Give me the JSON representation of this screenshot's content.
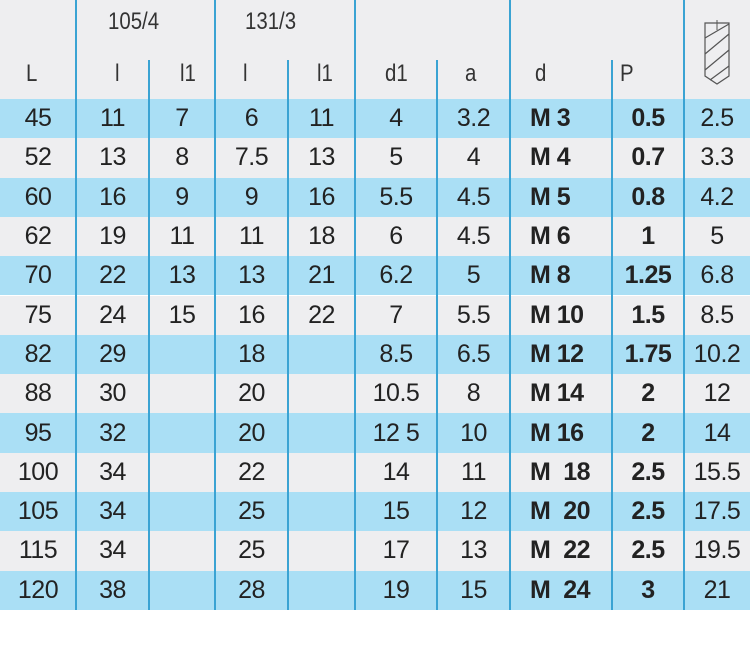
{
  "header": {
    "group_105": "105/4",
    "group_131": "131/3",
    "columns": [
      "L",
      "l",
      "l1",
      "l",
      "l1",
      "d1",
      "a",
      "d",
      "P"
    ],
    "icon": "tap-drill-icon"
  },
  "colors": {
    "row_blue": "#aadff5",
    "row_grey": "#eeeef0",
    "lines": "#3aa3d3"
  },
  "rows": [
    [
      "45",
      "11",
      "7",
      "6",
      "11",
      "4",
      "3.2",
      "M 3",
      "0.5",
      "2.5"
    ],
    [
      "52",
      "13",
      "8",
      "7.5",
      "13",
      "5",
      "4",
      "M 4",
      "0.7",
      "3.3"
    ],
    [
      "60",
      "16",
      "9",
      "9",
      "16",
      "5.5",
      "4.5",
      "M 5",
      "0.8",
      "4.2"
    ],
    [
      "62",
      "19",
      "11",
      "11",
      "18",
      "6",
      "4.5",
      "M 6",
      "1",
      "5"
    ],
    [
      "70",
      "22",
      "13",
      "13",
      "21",
      "6.2",
      "5",
      "M 8",
      "1.25",
      "6.8"
    ],
    [
      "75",
      "24",
      "15",
      "16",
      "22",
      "7",
      "5.5",
      "M 10",
      "1.5",
      "8.5"
    ],
    [
      "82",
      "29",
      "",
      "18",
      "",
      "8.5",
      "6.5",
      "M 12",
      "1.75",
      "10.2"
    ],
    [
      "88",
      "30",
      "",
      "20",
      "",
      "10.5",
      "8",
      "M 14",
      "2",
      "12"
    ],
    [
      "95",
      "32",
      "",
      "20",
      "",
      "12 5",
      "10",
      "M 16",
      "2",
      "14"
    ],
    [
      "100",
      "34",
      "",
      "22",
      "",
      "14",
      "11",
      "M  18",
      "2.5",
      "15.5"
    ],
    [
      "105",
      "34",
      "",
      "25",
      "",
      "15",
      "12",
      "M  20",
      "2.5",
      "17.5"
    ],
    [
      "115",
      "34",
      "",
      "25",
      "",
      "17",
      "13",
      "M  22",
      "2.5",
      "19.5"
    ],
    [
      "120",
      "38",
      "",
      "28",
      "",
      "19",
      "15",
      "M  24",
      "3",
      "21"
    ]
  ]
}
